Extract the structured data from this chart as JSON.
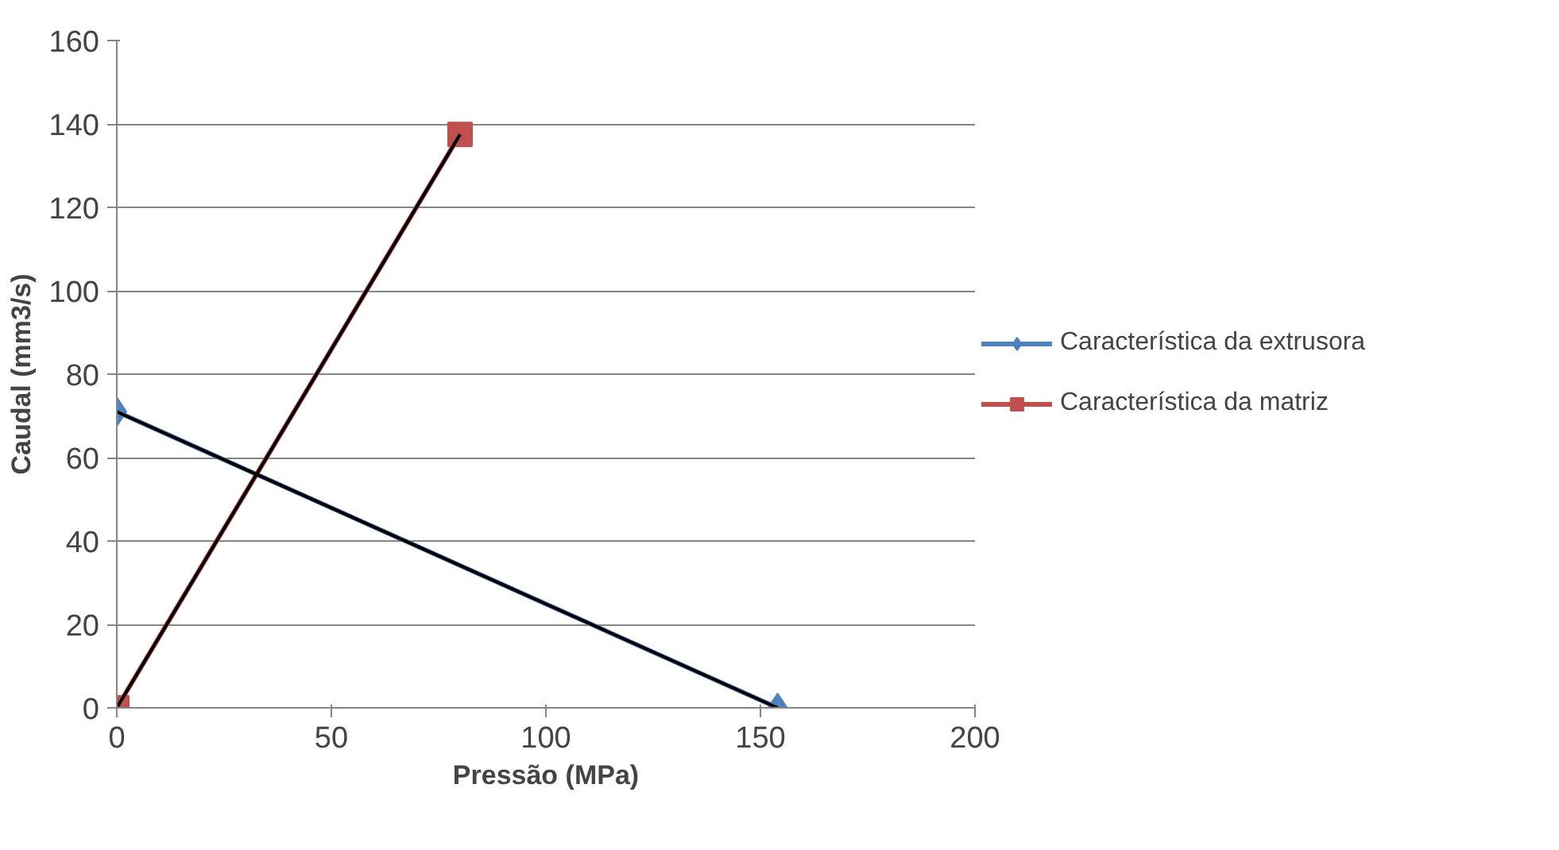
{
  "chart_data": {
    "type": "line",
    "xlabel": "Pressão (MPa)",
    "ylabel": "Caudal (mm3/s)",
    "xlim": [
      0,
      200
    ],
    "xticks": [
      0,
      50,
      100,
      150,
      200
    ],
    "ylim": [
      0,
      160
    ],
    "yticks": [
      0,
      20,
      40,
      60,
      80,
      100,
      120,
      140,
      160
    ],
    "grid": "y",
    "legend": "right",
    "series": [
      {
        "name": "Característica da extrusora",
        "color": "#4f81bd",
        "marker": "diamond",
        "x": [
          0,
          154
        ],
        "values": [
          71,
          0
        ]
      },
      {
        "name": "Característica da matriz",
        "color": "#c0504d",
        "marker": "square",
        "x": [
          0,
          80
        ],
        "values": [
          0,
          137.5
        ]
      },
      {
        "color": "#000000",
        "marker": "none",
        "x": [
          0,
          154
        ],
        "values": [
          71,
          0
        ]
      },
      {
        "color": "#000000",
        "marker": "none",
        "x": [
          0,
          80
        ],
        "values": [
          0,
          137.5
        ]
      }
    ]
  }
}
